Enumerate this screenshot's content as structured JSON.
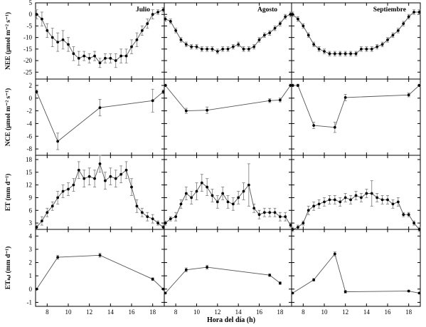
{
  "xlabel": "Hora del día (h)",
  "column_titles": [
    "Julio",
    "Agosto",
    "Septiembre"
  ],
  "x_tick_labels": [
    "8",
    "10",
    "12",
    "14",
    "16",
    "18"
  ],
  "chart_data": [
    {
      "type": "line",
      "row": 0,
      "ylabel": "NEE (μmol m⁻² s⁻¹)",
      "ylim": [
        -28,
        5
      ],
      "yticks": [
        5,
        0,
        -5,
        -10,
        -15,
        -20,
        -25
      ],
      "series": [
        {
          "column": "Julio",
          "x": [
            7,
            7.5,
            8,
            8.5,
            9,
            9.5,
            10,
            10.5,
            11,
            11.5,
            12,
            12.5,
            13,
            13.5,
            14,
            14.5,
            15,
            15.5,
            16,
            16.5,
            17,
            17.5,
            18,
            18.5,
            19
          ],
          "y": [
            0,
            -2,
            -7,
            -10,
            -12,
            -11,
            -13,
            -17,
            -19,
            -18,
            -19,
            -18,
            -21,
            -19,
            -19,
            -20,
            -18,
            -18,
            -14,
            -11,
            -7,
            -4,
            0,
            1,
            2
          ],
          "err": [
            2,
            3,
            3,
            4,
            4,
            4,
            3,
            3,
            3,
            2,
            2,
            2,
            2,
            2,
            2,
            3,
            3,
            3,
            3,
            3,
            2,
            2,
            2,
            1,
            1
          ]
        },
        {
          "column": "Agosto",
          "x": [
            7,
            7.5,
            8,
            8.5,
            9,
            9.5,
            10,
            10.5,
            11,
            11.5,
            12,
            12.5,
            13,
            13.5,
            14,
            14.5,
            15,
            15.5,
            16,
            16.5,
            17,
            17.5,
            18,
            18.5,
            19
          ],
          "y": [
            -2,
            -3,
            -7,
            -11,
            -13,
            -14,
            -14,
            -15,
            -15,
            -15,
            -16,
            -15,
            -15,
            -14,
            -13,
            -15,
            -15,
            -14,
            -11,
            -9,
            -8,
            -6,
            -4,
            -1,
            0
          ],
          "err": [
            1,
            1,
            1,
            1,
            1,
            1,
            1,
            1,
            1,
            1,
            1,
            1,
            1,
            1,
            1,
            1,
            1,
            1,
            1,
            1,
            1,
            1,
            1,
            1,
            1
          ]
        },
        {
          "column": "Septiembre",
          "x": [
            7,
            7.5,
            8,
            8.5,
            9,
            9.5,
            10,
            10.5,
            11,
            11.5,
            12,
            12.5,
            13,
            13.5,
            14,
            14.5,
            15,
            15.5,
            16,
            16.5,
            17,
            17.5,
            18,
            18.5,
            19
          ],
          "y": [
            0,
            -2,
            -5,
            -9,
            -13,
            -15,
            -16,
            -17,
            -17,
            -17,
            -17,
            -17,
            -17,
            -15,
            -15,
            -15,
            -14,
            -13,
            -11,
            -9,
            -7,
            -4,
            -1,
            1,
            1
          ],
          "err": [
            1,
            1,
            1,
            1,
            1,
            1,
            1,
            1,
            1,
            1,
            1,
            1,
            1,
            1,
            1,
            1,
            1,
            1,
            1,
            1,
            1,
            1,
            1,
            1,
            1
          ]
        }
      ]
    },
    {
      "type": "line",
      "row": 1,
      "ylabel": "NCE (μmol m⁻² s⁻¹)",
      "ylim": [
        -9,
        3
      ],
      "yticks": [
        2,
        0,
        -2,
        -4,
        -6,
        -8
      ],
      "series": [
        {
          "column": "Julio",
          "x": [
            7,
            9,
            13,
            18,
            19
          ],
          "y": [
            1,
            -6.8,
            -1.5,
            -0.4,
            1
          ],
          "err": [
            0.3,
            1.3,
            1.3,
            1.8,
            0.3
          ]
        },
        {
          "column": "Agosto",
          "x": [
            7,
            9,
            11,
            17,
            18,
            19
          ],
          "y": [
            2,
            -2,
            -1.9,
            -0.4,
            -0.3,
            2
          ],
          "err": [
            0.2,
            0.4,
            0.5,
            0.3,
            0.3,
            0.2
          ]
        },
        {
          "column": "Septiembre",
          "x": [
            7,
            7.5,
            9,
            11,
            12,
            18,
            19
          ],
          "y": [
            2,
            2,
            -4.3,
            -4.6,
            0.1,
            0.5,
            2
          ],
          "err": [
            0.2,
            0.2,
            0.5,
            0.8,
            0.5,
            0.3,
            0.2
          ]
        }
      ]
    },
    {
      "type": "line",
      "row": 2,
      "ylabel": "ET (mm d⁻¹)",
      "ylim": [
        1.5,
        19
      ],
      "yticks": [
        18,
        15,
        12,
        9,
        6,
        3
      ],
      "series": [
        {
          "column": "Julio",
          "x": [
            7,
            7.5,
            8,
            8.5,
            9,
            9.5,
            10,
            10.5,
            11,
            11.5,
            12,
            12.5,
            13,
            13.5,
            14,
            14.5,
            15,
            15.5,
            16,
            16.5,
            17,
            17.5,
            18,
            18.5,
            19
          ],
          "y": [
            2,
            3.5,
            5.5,
            7,
            9,
            10.5,
            11,
            12,
            15.5,
            13.5,
            14,
            13.5,
            17,
            13,
            14,
            13.5,
            14.5,
            15.5,
            11.5,
            7,
            5.5,
            4.5,
            4,
            3,
            2
          ],
          "err": [
            0.5,
            1,
            1,
            1,
            1.5,
            1.5,
            1.5,
            1.5,
            2,
            2,
            2,
            2,
            2,
            2,
            2,
            2,
            2,
            2,
            2,
            1.5,
            1,
            1,
            1,
            0.5,
            0.5
          ]
        },
        {
          "column": "Agosto",
          "x": [
            7,
            7.5,
            8,
            8.5,
            9,
            9.5,
            10,
            10.5,
            11,
            11.5,
            12,
            12.5,
            13,
            13.5,
            14,
            14.5,
            15,
            15.5,
            16,
            16.5,
            17,
            17.5,
            18,
            18.5,
            19
          ],
          "y": [
            3,
            4,
            4.5,
            7.5,
            10,
            9,
            10.5,
            12.5,
            11.5,
            9.5,
            8,
            10,
            8,
            7.5,
            9,
            10.5,
            12,
            6.5,
            5,
            5.5,
            5.5,
            5.5,
            4.5,
            4.5,
            2.5
          ],
          "err": [
            0.5,
            0.5,
            1,
            1,
            1.5,
            1.5,
            2,
            2,
            2,
            1.5,
            1.5,
            1.5,
            1.5,
            1.5,
            1.5,
            2,
            5,
            1,
            1,
            1,
            1,
            1,
            1,
            1,
            0.5
          ]
        },
        {
          "column": "Septiembre",
          "x": [
            7,
            7.5,
            8,
            8.5,
            9,
            9.5,
            10,
            10.5,
            11,
            11.5,
            12,
            12.5,
            13,
            13.5,
            14,
            14.5,
            15,
            15.5,
            16,
            16.5,
            17,
            17.5,
            18,
            18.5,
            19
          ],
          "y": [
            1.5,
            2,
            3,
            6,
            7,
            7.5,
            8,
            8.5,
            8.5,
            8,
            9,
            8.5,
            9.5,
            9,
            10,
            10,
            9,
            8.5,
            8.5,
            7.5,
            8,
            5,
            5,
            3,
            1.5
          ],
          "err": [
            0.5,
            0.5,
            0.5,
            1,
            1,
            1,
            1,
            1,
            1,
            1,
            1,
            1,
            1,
            1,
            1,
            3,
            1,
            1,
            1,
            1,
            1,
            0.5,
            0.5,
            0.5,
            0.5
          ]
        }
      ]
    },
    {
      "type": "line",
      "row": 3,
      "ylabel": "ETₛₒₗ (mm d⁻¹)",
      "ylim": [
        -1.3,
        4.5
      ],
      "yticks": [
        4,
        3,
        2,
        1,
        0,
        -1
      ],
      "series": [
        {
          "column": "Julio",
          "x": [
            7,
            9,
            13,
            18,
            19
          ],
          "y": [
            0,
            2.4,
            2.55,
            0.75,
            0
          ],
          "err": [
            0.05,
            0.15,
            0.15,
            0.1,
            0.05
          ]
        },
        {
          "column": "Agosto",
          "x": [
            7,
            9,
            11,
            17,
            18
          ],
          "y": [
            -0.3,
            1.45,
            1.65,
            1.05,
            0.45
          ],
          "err": [
            0.05,
            0.15,
            0.15,
            0.1,
            0.1
          ]
        },
        {
          "column": "Septiembre",
          "x": [
            7,
            9,
            11,
            12,
            18,
            19
          ],
          "y": [
            -0.3,
            0.7,
            2.65,
            -0.2,
            -0.15,
            -0.3
          ],
          "err": [
            0.05,
            0.1,
            0.15,
            0.1,
            0.05,
            0.05
          ]
        }
      ]
    }
  ]
}
